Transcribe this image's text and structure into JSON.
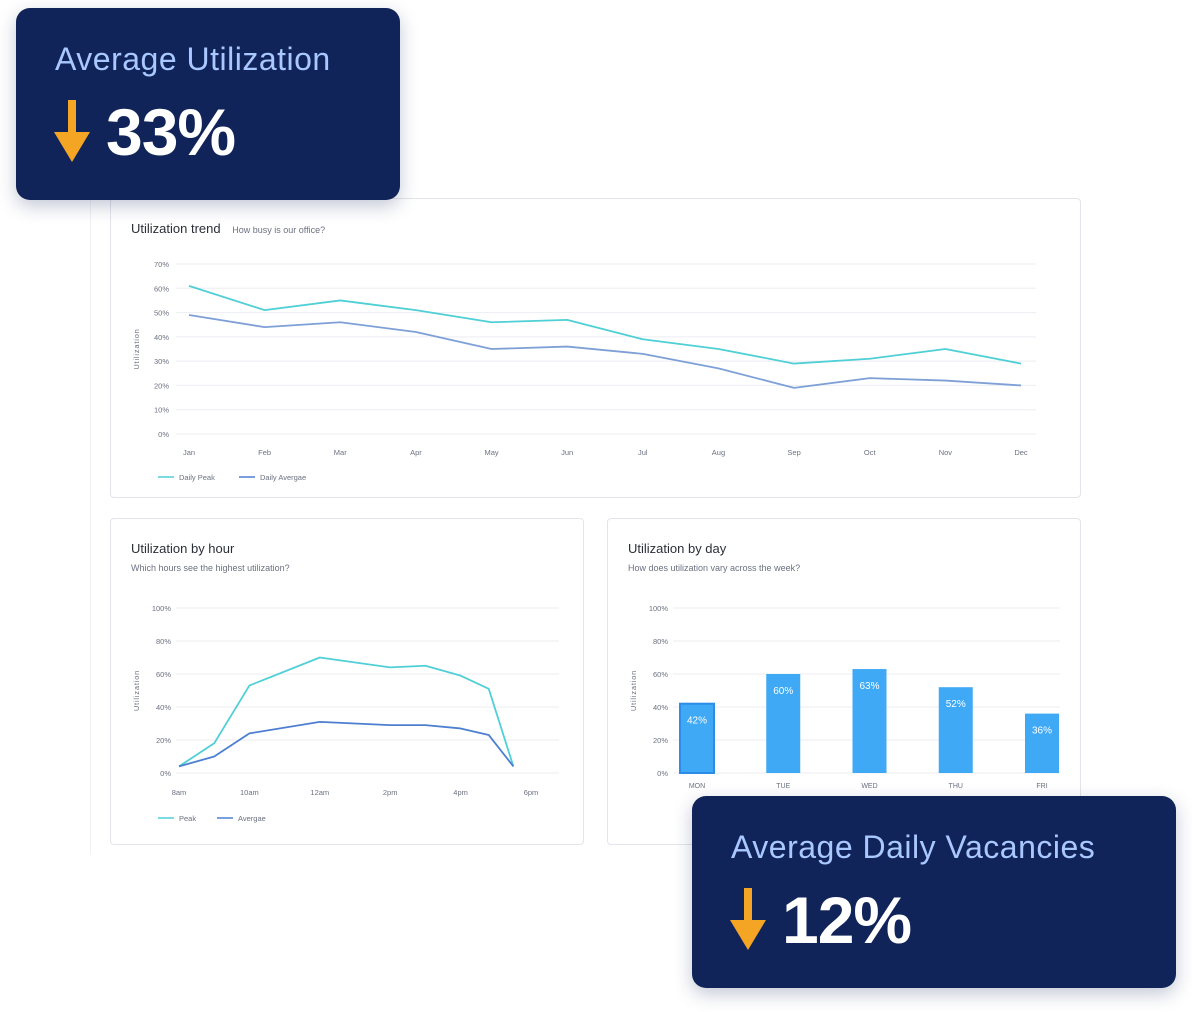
{
  "colors": {
    "peak": "#4fcfd6",
    "average": "#4d7fd1",
    "average_soft": "#7ea0d6",
    "bar": "#3fa9f5",
    "bar_highlight": "#2b8de8",
    "stat_bg": "#10245a",
    "stat_label": "#a9c8ff",
    "arrow": "#f5a524"
  },
  "stats": [
    {
      "label": "Average Utilization",
      "value": "33%",
      "direction": "down",
      "icon": "arrow-down-icon"
    },
    {
      "label": "Average Daily Vacancies",
      "value": "12%",
      "direction": "down",
      "icon": "arrow-down-icon"
    }
  ],
  "trend": {
    "title": "Utilization trend",
    "subtitle": "How busy is our office?"
  },
  "hour": {
    "title": "Utilization by hour",
    "subtitle": "Which hours see the highest utilization?"
  },
  "day": {
    "title": "Utilization by day",
    "subtitle": "How does utilization vary across the week?"
  },
  "chart_data": [
    {
      "type": "line",
      "title": "Utilization trend",
      "subtitle": "How busy is our office?",
      "ylabel": "Utilization",
      "xlabel": "",
      "ylim": [
        0,
        70
      ],
      "yticks": [
        "0%",
        "10%",
        "20%",
        "30%",
        "40%",
        "50%",
        "60%",
        "70%"
      ],
      "categories": [
        "Jan",
        "Feb",
        "Mar",
        "Apr",
        "May",
        "Jun",
        "Jul",
        "Aug",
        "Sep",
        "Oct",
        "Nov",
        "Dec"
      ],
      "series": [
        {
          "name": "Daily Peak",
          "values": [
            61,
            51,
            55,
            51,
            46,
            47,
            39,
            35,
            29,
            31,
            35,
            29
          ]
        },
        {
          "name": "Daily Avergae",
          "values": [
            49,
            44,
            46,
            42,
            35,
            36,
            33,
            27,
            19,
            23,
            22,
            20
          ]
        }
      ],
      "grid": true,
      "legend": "bottom-left"
    },
    {
      "type": "line",
      "title": "Utilization by hour",
      "subtitle": "Which hours see the highest utilization?",
      "ylabel": "Utilization",
      "xlabel": "",
      "ylim": [
        0,
        100
      ],
      "yticks": [
        "0%",
        "20%",
        "40%",
        "60%",
        "80%",
        "100%"
      ],
      "xticks": [
        "8am",
        "10am",
        "12am",
        "2pm",
        "4pm",
        "6pm"
      ],
      "x": [
        8,
        9,
        10,
        12,
        14,
        15,
        16,
        16.8,
        17.5
      ],
      "series": [
        {
          "name": "Peak",
          "values": [
            4,
            18,
            53,
            70,
            64,
            65,
            59,
            51,
            4
          ]
        },
        {
          "name": "Avergae",
          "values": [
            4,
            10,
            24,
            31,
            29,
            29,
            27,
            23,
            4
          ]
        }
      ],
      "grid": true,
      "legend": "bottom-left"
    },
    {
      "type": "bar",
      "title": "Utilization by day",
      "subtitle": "How does utilization vary across the week?",
      "ylabel": "Utilization",
      "xlabel": "",
      "ylim": [
        0,
        100
      ],
      "yticks": [
        "0%",
        "20%",
        "40%",
        "60%",
        "80%",
        "100%"
      ],
      "categories": [
        "MON",
        "TUE",
        "WED",
        "THU",
        "FRI"
      ],
      "values": [
        42,
        60,
        63,
        52,
        36
      ],
      "data_labels": [
        "42%",
        "60%",
        "63%",
        "52%",
        "36%"
      ],
      "grid": true
    }
  ]
}
